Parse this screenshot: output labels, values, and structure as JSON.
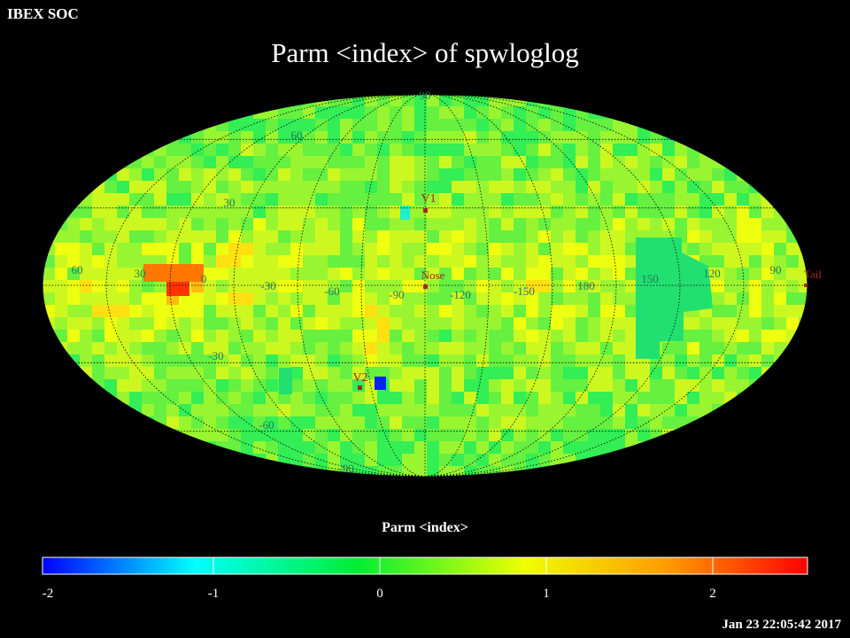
{
  "header": {
    "org_label": "IBEX SOC",
    "title": "Parm  <index> of spwloglog"
  },
  "map": {
    "projection": "mollweide",
    "grid_lines": "dotted",
    "lat_labels": [
      "90",
      "60",
      "30",
      "-30",
      "-60",
      "-90"
    ],
    "lon_labels": [
      "60",
      "30",
      "0",
      "-30",
      "-60",
      "-90",
      "-120",
      "-150",
      "180",
      "150",
      "120",
      "90"
    ],
    "markers": [
      {
        "label": "V1",
        "color": "#a02a1a"
      },
      {
        "label": "Nose",
        "color": "#a02a1a"
      },
      {
        "label": "V2",
        "color": "#a02a1a"
      },
      {
        "label": "Tail",
        "color": "#a02a1a"
      }
    ],
    "grid_color": "#000000",
    "label_color": "#1a7a5a"
  },
  "colorbar": {
    "title": "Parm  <index>",
    "min": -2,
    "max": 2.6,
    "ticks": [
      "-2",
      "-1",
      "0",
      "1",
      "2"
    ],
    "stops": [
      "#0000ff",
      "#00ffff",
      "#00ee33",
      "#eeff00",
      "#ff9900",
      "#ff0000"
    ]
  },
  "footer": {
    "timestamp": "Jan 23 22:05:42 2017"
  }
}
